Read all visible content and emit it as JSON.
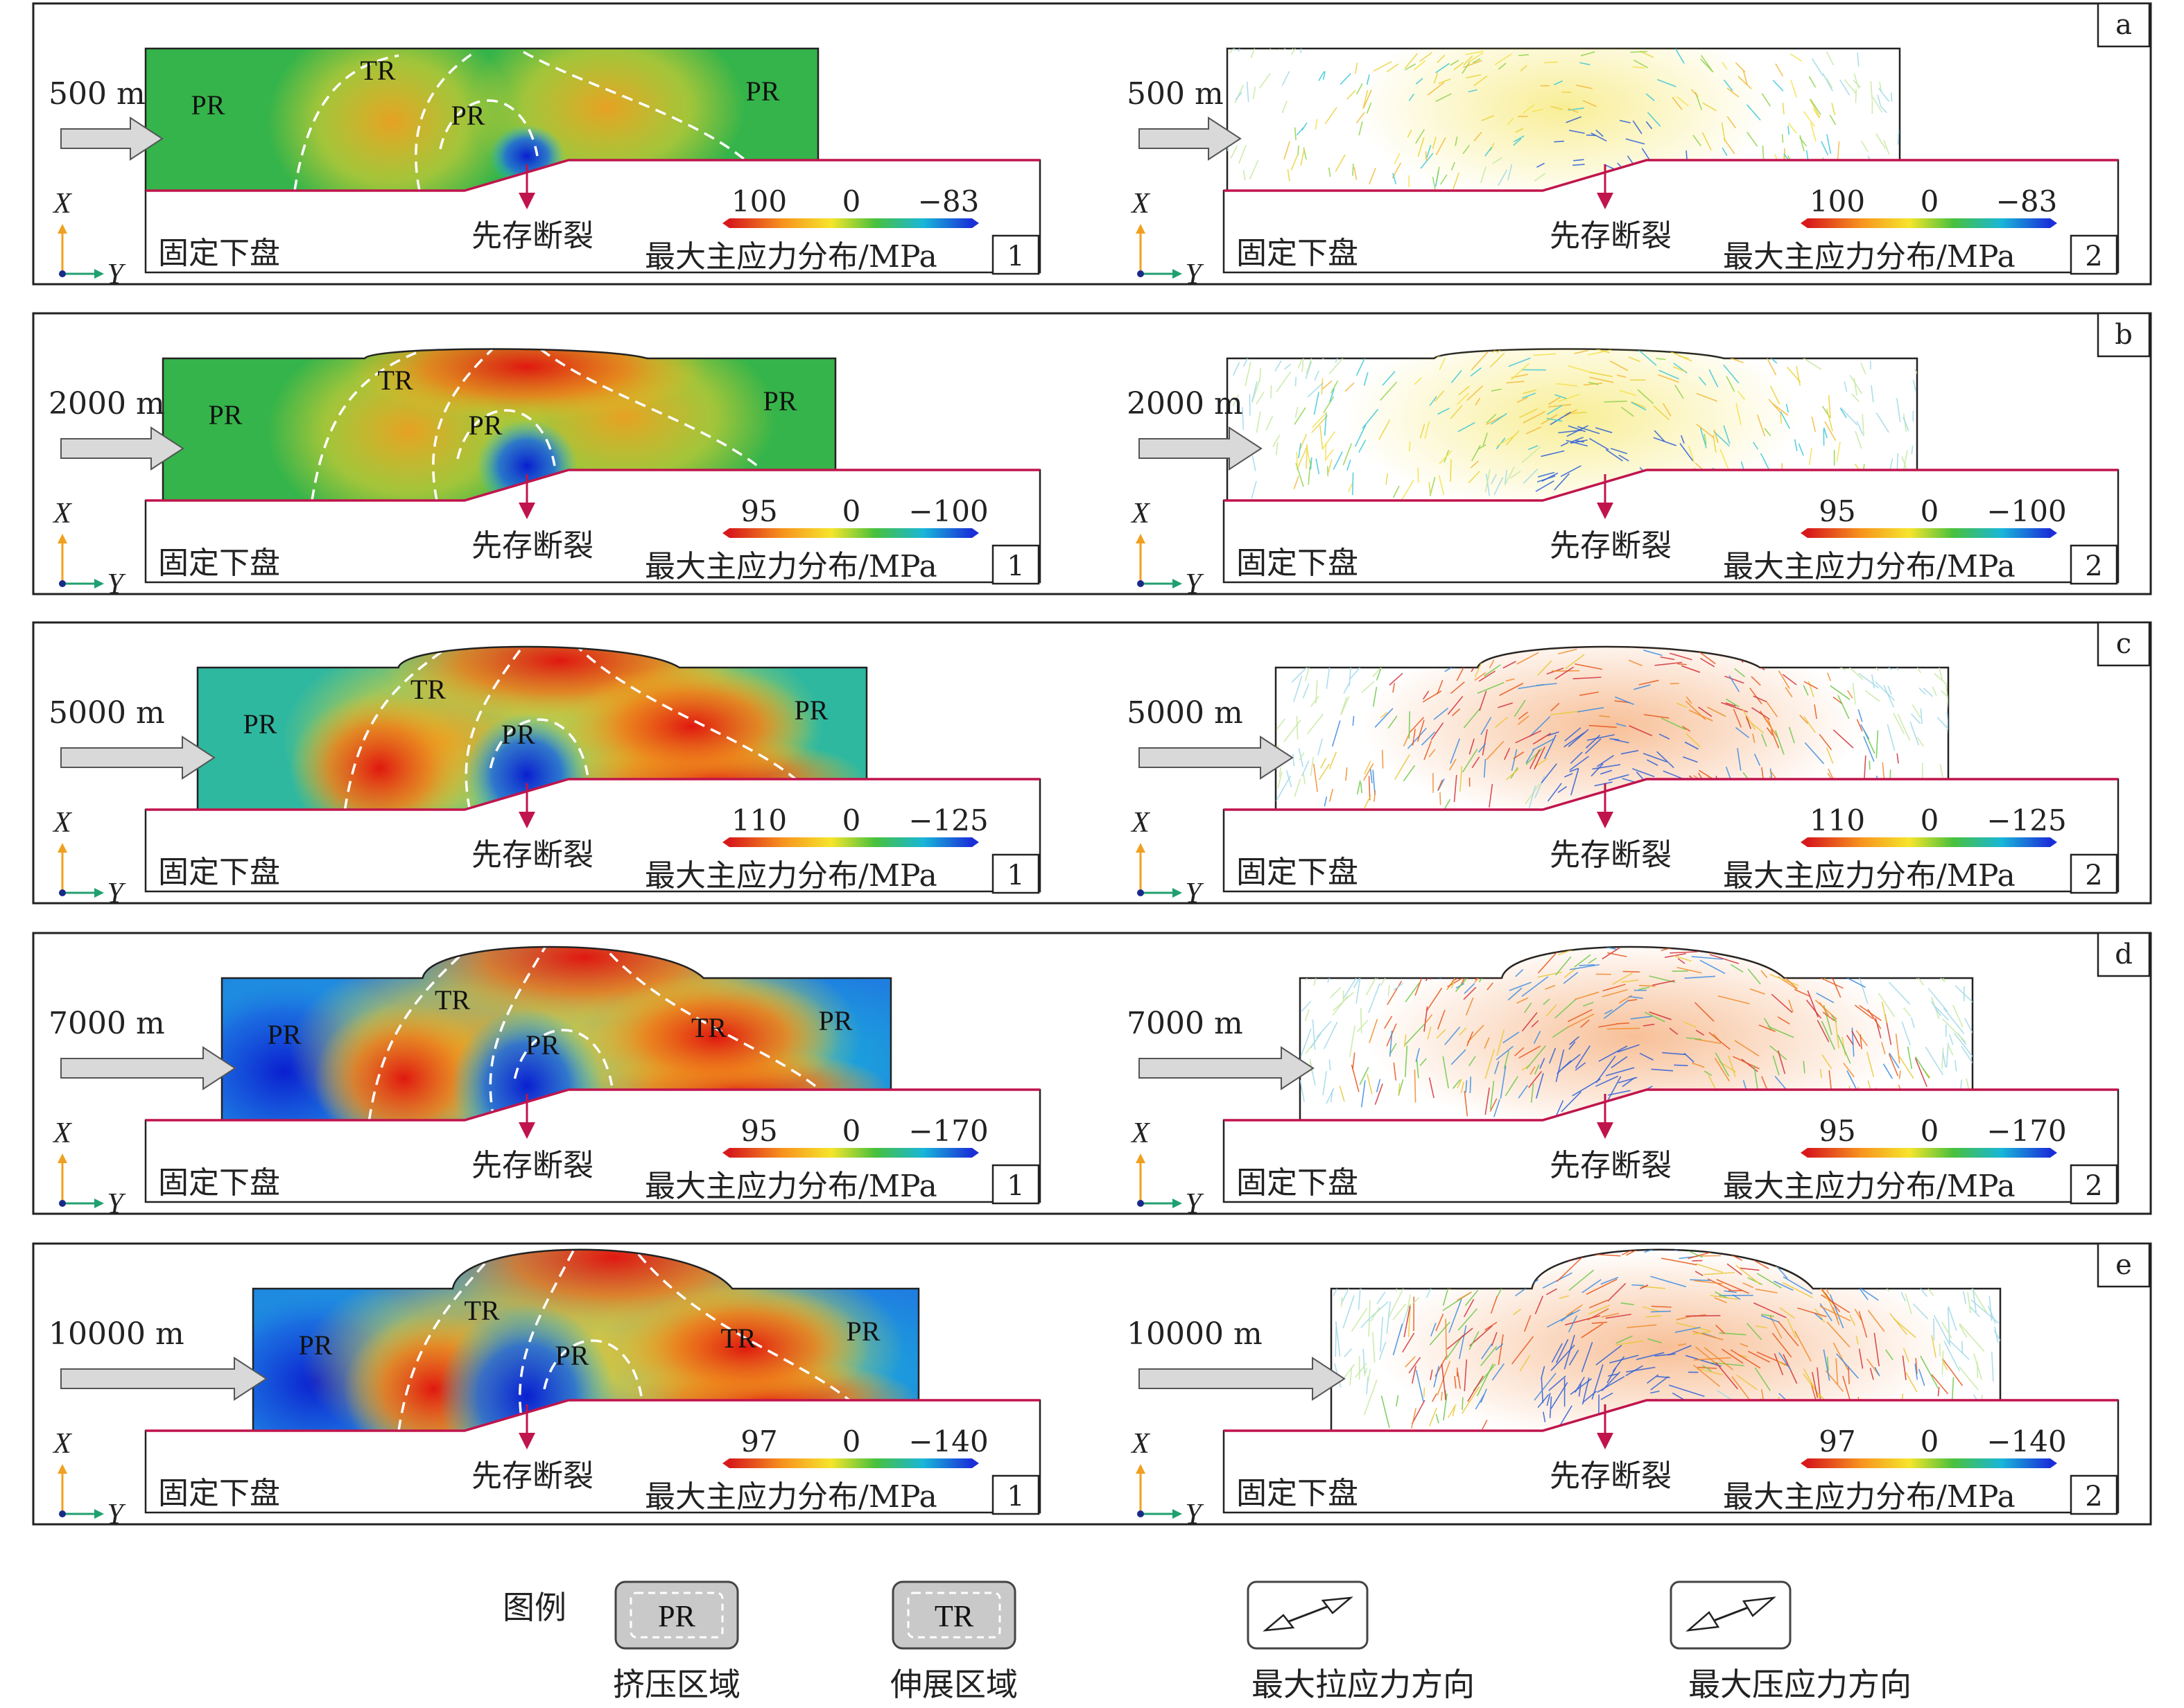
{
  "panels": [
    {
      "letter": "a",
      "distance": "500 m",
      "cb_max": "100",
      "cb_zero": "0",
      "cb_min": "−83",
      "regions": {
        "pr_left": "PR",
        "tr": "TR",
        "pr_mid": "PR",
        "pr_right": "PR"
      }
    },
    {
      "letter": "b",
      "distance": "2000 m",
      "cb_max": "95",
      "cb_zero": "0",
      "cb_min": "−100",
      "regions": {
        "pr_left": "PR",
        "tr": "TR",
        "pr_mid": "PR",
        "pr_right": "PR"
      }
    },
    {
      "letter": "c",
      "distance": "5000 m",
      "cb_max": "110",
      "cb_zero": "0",
      "cb_min": "−125",
      "regions": {
        "pr_left": "PR",
        "tr": "TR",
        "pr_mid": "PR",
        "pr_right": "PR"
      }
    },
    {
      "letter": "d",
      "distance": "7000 m",
      "cb_max": "95",
      "cb_zero": "0",
      "cb_min": "−170",
      "regions": {
        "pr_left": "PR",
        "tr": "TR",
        "pr_mid": "PR",
        "pr_right": "PR",
        "tr_right": "TR"
      }
    },
    {
      "letter": "e",
      "distance": "10000 m",
      "cb_max": "97",
      "cb_zero": "0",
      "cb_min": "−140",
      "regions": {
        "pr_left": "PR",
        "tr": "TR",
        "pr_mid": "PR",
        "pr_right": "PR",
        "tr_right": "TR"
      }
    }
  ],
  "common": {
    "fixed_footwall": "固定下盘",
    "preexisting_fault": "先存断裂",
    "colorbar_label": "最大主应力分布/MPa",
    "axis_x": "X",
    "axis_y": "Y",
    "sub_left": "1",
    "sub_right": "2"
  },
  "legend": {
    "title": "图例",
    "items": [
      {
        "box": "PR",
        "label": "挤压区域"
      },
      {
        "box": "TR",
        "label": "伸展区域"
      },
      {
        "box": "",
        "label": "最大拉应力方向"
      },
      {
        "box": "",
        "label": "最大压应力方向"
      }
    ]
  },
  "colors": {
    "frame": "#222222",
    "fault_line": "#c0144c",
    "fault_arrow": "#c0144c",
    "push_arrow_fill": "#d9d9d9",
    "compression_low": "#1033c8",
    "neutral": "#2fb34a",
    "tension_high": "#e02010"
  }
}
